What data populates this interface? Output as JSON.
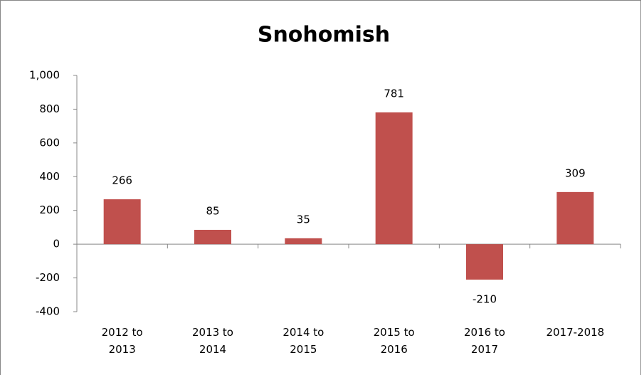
{
  "chart_data": {
    "type": "bar",
    "title": "Snohomish",
    "categories": [
      "2012 to 2013",
      "2013 to 2014",
      "2014 to 2015",
      "2015 to 2016",
      "2016 to 2017",
      "2017-2018"
    ],
    "values": [
      266,
      85,
      35,
      781,
      -210,
      309
    ],
    "color": "#c0504d",
    "ylim": [
      -400,
      1000
    ],
    "yticks": [
      -400,
      -200,
      0,
      200,
      400,
      600,
      800,
      {
        "value": 1000,
        "label": "1,000"
      }
    ],
    "grid": false
  }
}
